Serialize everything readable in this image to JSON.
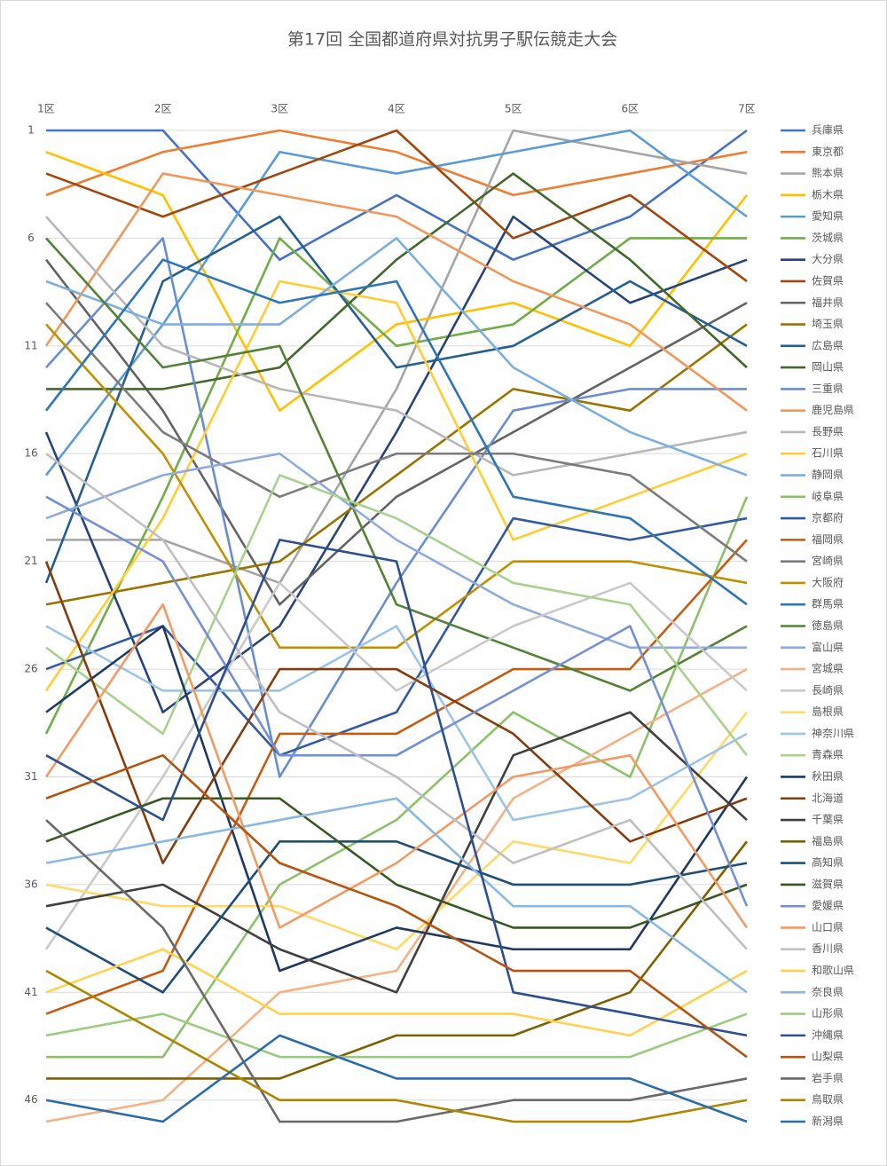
{
  "chart_data": {
    "type": "line",
    "title": "第17回 全国都道府県対抗男子駅伝競走大会",
    "categories": [
      "1区",
      "2区",
      "3区",
      "4区",
      "5区",
      "6区",
      "7区"
    ],
    "ylim": [
      1,
      47
    ],
    "yticks": [
      1,
      6,
      11,
      16,
      21,
      26,
      31,
      36,
      41,
      46
    ],
    "y_reversed": true,
    "grid": true,
    "legend": "right",
    "series": [
      {
        "name": "兵庫県",
        "color": "#4472C4",
        "values": [
          1,
          1,
          7,
          4,
          7,
          5,
          1
        ]
      },
      {
        "name": "東京都",
        "color": "#ED7D31",
        "values": [
          4,
          2,
          1,
          2,
          4,
          3,
          2
        ]
      },
      {
        "name": "熊本県",
        "color": "#A5A5A5",
        "values": [
          20,
          20,
          22,
          13,
          1,
          2,
          3
        ]
      },
      {
        "name": "栃木県",
        "color": "#FFC000",
        "values": [
          2,
          4,
          14,
          10,
          9,
          11,
          4
        ]
      },
      {
        "name": "愛知県",
        "color": "#5B9BD5",
        "values": [
          17,
          10,
          2,
          3,
          2,
          1,
          5
        ]
      },
      {
        "name": "茨城県",
        "color": "#70AD47",
        "values": [
          29,
          18,
          6,
          11,
          10,
          6,
          6
        ]
      },
      {
        "name": "大分県",
        "color": "#264478",
        "values": [
          15,
          28,
          24,
          15,
          5,
          9,
          7
        ]
      },
      {
        "name": "佐賀県",
        "color": "#9E480E",
        "values": [
          3,
          5,
          3,
          1,
          6,
          4,
          8
        ]
      },
      {
        "name": "福井県",
        "color": "#636363",
        "values": [
          7,
          14,
          23,
          18,
          15,
          12,
          9
        ]
      },
      {
        "name": "埼玉県",
        "color": "#997300",
        "values": [
          23,
          22,
          21,
          17,
          13,
          14,
          10
        ]
      },
      {
        "name": "広島県",
        "color": "#255E91",
        "values": [
          22,
          8,
          5,
          12,
          11,
          8,
          11
        ]
      },
      {
        "name": "岡山県",
        "color": "#43682B",
        "values": [
          13,
          13,
          12,
          7,
          3,
          7,
          12
        ]
      },
      {
        "name": "三重県",
        "color": "#698ED0",
        "values": [
          12,
          6,
          31,
          22,
          14,
          13,
          13
        ]
      },
      {
        "name": "鹿児島県",
        "color": "#F1975A",
        "values": [
          11,
          3,
          4,
          5,
          8,
          10,
          14
        ]
      },
      {
        "name": "長野県",
        "color": "#B7B7B7",
        "values": [
          5,
          11,
          13,
          14,
          17,
          16,
          15
        ]
      },
      {
        "name": "石川県",
        "color": "#FFCD33",
        "values": [
          27,
          19,
          8,
          9,
          20,
          18,
          16
        ]
      },
      {
        "name": "静岡県",
        "color": "#7CAFDD",
        "values": [
          8,
          10,
          10,
          6,
          12,
          15,
          17
        ]
      },
      {
        "name": "岐阜県",
        "color": "#8CC168",
        "values": [
          44,
          44,
          36,
          33,
          28,
          31,
          18
        ]
      },
      {
        "name": "京都府",
        "color": "#335AA1",
        "values": [
          26,
          24,
          30,
          28,
          19,
          20,
          19
        ]
      },
      {
        "name": "福岡県",
        "color": "#C55A11",
        "values": [
          42,
          40,
          29,
          29,
          26,
          26,
          20
        ]
      },
      {
        "name": "宮崎県",
        "color": "#7C7C7C",
        "values": [
          9,
          15,
          18,
          16,
          16,
          17,
          21
        ]
      },
      {
        "name": "大阪府",
        "color": "#BF9000",
        "values": [
          10,
          16,
          25,
          25,
          21,
          21,
          22
        ]
      },
      {
        "name": "群馬県",
        "color": "#2E75B6",
        "values": [
          14,
          7,
          9,
          8,
          18,
          19,
          23
        ]
      },
      {
        "name": "徳島県",
        "color": "#548235",
        "values": [
          6,
          12,
          11,
          23,
          25,
          27,
          24
        ]
      },
      {
        "name": "富山県",
        "color": "#8FAADC",
        "values": [
          19,
          17,
          16,
          20,
          23,
          25,
          25
        ]
      },
      {
        "name": "宮城県",
        "color": "#F4B183",
        "values": [
          47,
          46,
          41,
          40,
          32,
          29,
          26
        ]
      },
      {
        "name": "長崎県",
        "color": "#C9C9C9",
        "values": [
          39,
          31,
          22,
          27,
          24,
          22,
          27
        ]
      },
      {
        "name": "島根県",
        "color": "#FFD966",
        "values": [
          36,
          37,
          37,
          39,
          34,
          35,
          28
        ]
      },
      {
        "name": "神奈川県",
        "color": "#9DC3E6",
        "values": [
          24,
          27,
          27,
          24,
          33,
          32,
          29
        ]
      },
      {
        "name": "青森県",
        "color": "#A9D18E",
        "values": [
          25,
          29,
          17,
          19,
          22,
          23,
          30
        ]
      },
      {
        "name": "秋田県",
        "color": "#203864",
        "values": [
          28,
          24,
          40,
          38,
          39,
          39,
          31
        ]
      },
      {
        "name": "北海道",
        "color": "#843C0C",
        "values": [
          21,
          35,
          26,
          26,
          29,
          34,
          32
        ]
      },
      {
        "name": "千葉県",
        "color": "#404040",
        "values": [
          37,
          36,
          39,
          41,
          30,
          28,
          33
        ]
      },
      {
        "name": "福島県",
        "color": "#7F6000",
        "values": [
          45,
          45,
          45,
          43,
          43,
          41,
          34
        ]
      },
      {
        "name": "高知県",
        "color": "#1F4E79",
        "values": [
          38,
          41,
          34,
          34,
          36,
          36,
          35
        ]
      },
      {
        "name": "滋賀県",
        "color": "#385723",
        "values": [
          34,
          32,
          32,
          36,
          38,
          38,
          36
        ]
      },
      {
        "name": "愛媛県",
        "color": "#7391D2",
        "values": [
          18,
          21,
          30,
          30,
          27,
          24,
          37
        ]
      },
      {
        "name": "山口県",
        "color": "#F19A63",
        "values": [
          31,
          23,
          38,
          35,
          31,
          30,
          38
        ]
      },
      {
        "name": "香川県",
        "color": "#BFBFBF",
        "values": [
          16,
          20,
          28,
          31,
          35,
          33,
          39
        ]
      },
      {
        "name": "和歌山県",
        "color": "#FFD24D",
        "values": [
          41,
          39,
          42,
          42,
          42,
          43,
          40
        ]
      },
      {
        "name": "奈良県",
        "color": "#8BB8E0",
        "values": [
          35,
          34,
          33,
          32,
          37,
          37,
          41
        ]
      },
      {
        "name": "山形県",
        "color": "#9BCB80",
        "values": [
          43,
          42,
          44,
          44,
          44,
          44,
          42
        ]
      },
      {
        "name": "沖縄県",
        "color": "#2E4F8F",
        "values": [
          30,
          33,
          20,
          21,
          41,
          42,
          43
        ]
      },
      {
        "name": "山梨県",
        "color": "#B4540F",
        "values": [
          32,
          30,
          35,
          37,
          40,
          40,
          44
        ]
      },
      {
        "name": "岩手県",
        "color": "#696969",
        "values": [
          33,
          38,
          47,
          47,
          46,
          46,
          45
        ]
      },
      {
        "name": "鳥取県",
        "color": "#AD8600",
        "values": [
          40,
          43,
          46,
          46,
          47,
          47,
          46
        ]
      },
      {
        "name": "新潟県",
        "color": "#2A6CA8",
        "values": [
          46,
          47,
          43,
          45,
          45,
          45,
          47
        ]
      }
    ]
  }
}
